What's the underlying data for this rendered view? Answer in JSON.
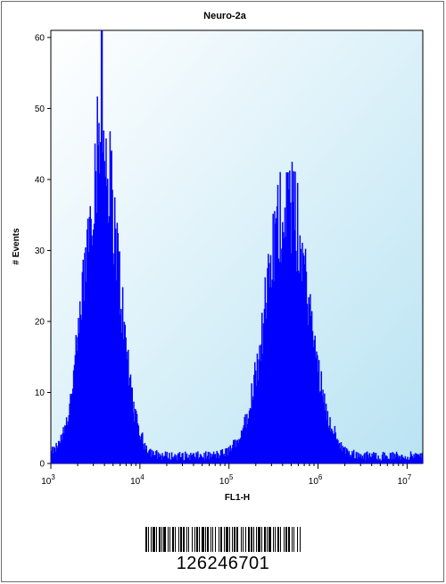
{
  "chart_data": {
    "type": "histogram",
    "title": "Neuro-2a",
    "xlabel": "FL1-H",
    "ylabel": "# Events",
    "x_scale": "log",
    "xlim": [
      1000,
      15000000
    ],
    "ylim": [
      0,
      61
    ],
    "y_ticks": [
      0,
      10,
      20,
      30,
      40,
      50,
      60
    ],
    "x_ticks": [
      {
        "base": "10",
        "exp": "3",
        "value": 1000
      },
      {
        "base": "10",
        "exp": "4",
        "value": 10000
      },
      {
        "base": "10",
        "exp": "5",
        "value": 100000
      },
      {
        "base": "10",
        "exp": "6",
        "value": 1000000
      },
      {
        "base": "10",
        "exp": "7",
        "value": 10000000
      }
    ],
    "fill_color": "#0000ff",
    "background_color": "#d6eef7",
    "peaks": [
      {
        "center": 3700,
        "max_events": 61,
        "height_events": 44,
        "width_decades": 0.19
      },
      {
        "center": 450000,
        "max_events": 41,
        "height_events": 36,
        "width_decades": 0.24
      }
    ],
    "baseline_events": 1
  },
  "barcode": {
    "number": "126246701"
  }
}
